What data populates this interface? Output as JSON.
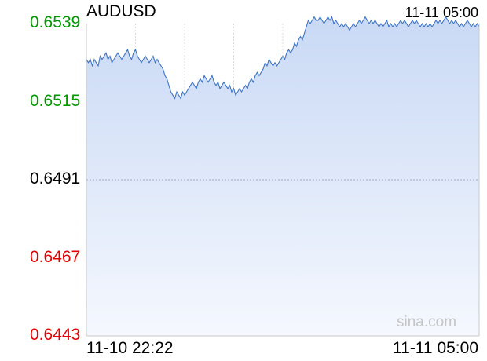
{
  "header": {
    "symbol": "AUDUSD",
    "timestamp": "11-11 05:00"
  },
  "watermark": "sina.com",
  "colors": {
    "up": "#009900",
    "down": "#e60000",
    "neutral": "#000000",
    "line": "#3d74c6",
    "fill_top": "#c9d9f5",
    "fill_bottom": "#f5f8fe",
    "grid": "#dcdcdc",
    "baseline": "#9aa9c8"
  },
  "chart_data": {
    "type": "area",
    "title": "AUDUSD",
    "xlabel": "",
    "ylabel": "",
    "ylim": [
      0.6443,
      0.6539
    ],
    "reference_price": 0.6491,
    "yticks": [
      {
        "label": "0.6539",
        "value": 0.6539,
        "color": "up"
      },
      {
        "label": "0.6515",
        "value": 0.6515,
        "color": "up"
      },
      {
        "label": "0.6491",
        "value": 0.6491,
        "color": "neutral"
      },
      {
        "label": "0.6467",
        "value": 0.6467,
        "color": "down"
      },
      {
        "label": "0.6443",
        "value": 0.6443,
        "color": "down"
      }
    ],
    "xticks": [
      "11-10 22:22",
      "11-11 05:00"
    ],
    "grid": true,
    "series": [
      {
        "values": [
          0.6528,
          0.6527,
          0.6528,
          0.6526,
          0.6528,
          0.6527,
          0.6526,
          0.6529,
          0.6528,
          0.6529,
          0.653,
          0.6528,
          0.6529,
          0.6527,
          0.6528,
          0.6529,
          0.653,
          0.6529,
          0.6528,
          0.6529,
          0.653,
          0.6531,
          0.6529,
          0.6528,
          0.653,
          0.6531,
          0.6529,
          0.6528,
          0.6527,
          0.6528,
          0.6529,
          0.6528,
          0.6527,
          0.6528,
          0.6529,
          0.6527,
          0.6528,
          0.6527,
          0.6526,
          0.6525,
          0.6523,
          0.6522,
          0.652,
          0.6518,
          0.6517,
          0.6516,
          0.6518,
          0.6517,
          0.6516,
          0.6518,
          0.6517,
          0.6518,
          0.6519,
          0.652,
          0.6521,
          0.652,
          0.6519,
          0.6521,
          0.6522,
          0.6521,
          0.6523,
          0.6522,
          0.6521,
          0.6522,
          0.6523,
          0.6521,
          0.652,
          0.6521,
          0.6519,
          0.652,
          0.6521,
          0.652,
          0.6519,
          0.652,
          0.6518,
          0.6519,
          0.6517,
          0.6518,
          0.6519,
          0.6518,
          0.6519,
          0.652,
          0.6519,
          0.6521,
          0.6522,
          0.6521,
          0.6523,
          0.6524,
          0.6523,
          0.6524,
          0.6525,
          0.6527,
          0.6526,
          0.6528,
          0.6527,
          0.6526,
          0.6527,
          0.6526,
          0.6527,
          0.6528,
          0.6529,
          0.6528,
          0.653,
          0.6531,
          0.653,
          0.6531,
          0.6533,
          0.6532,
          0.6534,
          0.6535,
          0.6534,
          0.6536,
          0.6538,
          0.654,
          0.6539,
          0.654,
          0.6541,
          0.654,
          0.654,
          0.6541,
          0.654,
          0.6539,
          0.654,
          0.6541,
          0.654,
          0.6541,
          0.6539,
          0.654,
          0.6539,
          0.6538,
          0.6539,
          0.6538,
          0.6539,
          0.6538,
          0.6537,
          0.6538,
          0.6539,
          0.6538,
          0.6539,
          0.654,
          0.6539,
          0.654,
          0.6541,
          0.654,
          0.6539,
          0.654,
          0.6539,
          0.654,
          0.6539,
          0.6538,
          0.6539,
          0.6538,
          0.6539,
          0.654,
          0.6538,
          0.6539,
          0.6538,
          0.6539,
          0.6538,
          0.6539,
          0.654,
          0.6539,
          0.654,
          0.6539,
          0.6538,
          0.6539,
          0.654,
          0.6539,
          0.654,
          0.6539,
          0.6538,
          0.6539,
          0.6538,
          0.6539,
          0.6538,
          0.6539,
          0.6538,
          0.6539,
          0.654,
          0.6539,
          0.654,
          0.6539,
          0.654,
          0.6541,
          0.654,
          0.6539,
          0.654,
          0.6539,
          0.654,
          0.6539,
          0.6538,
          0.6539,
          0.6538,
          0.6539,
          0.654,
          0.6539,
          0.6538,
          0.6539,
          0.6538,
          0.6539,
          0.6538
        ]
      }
    ]
  }
}
